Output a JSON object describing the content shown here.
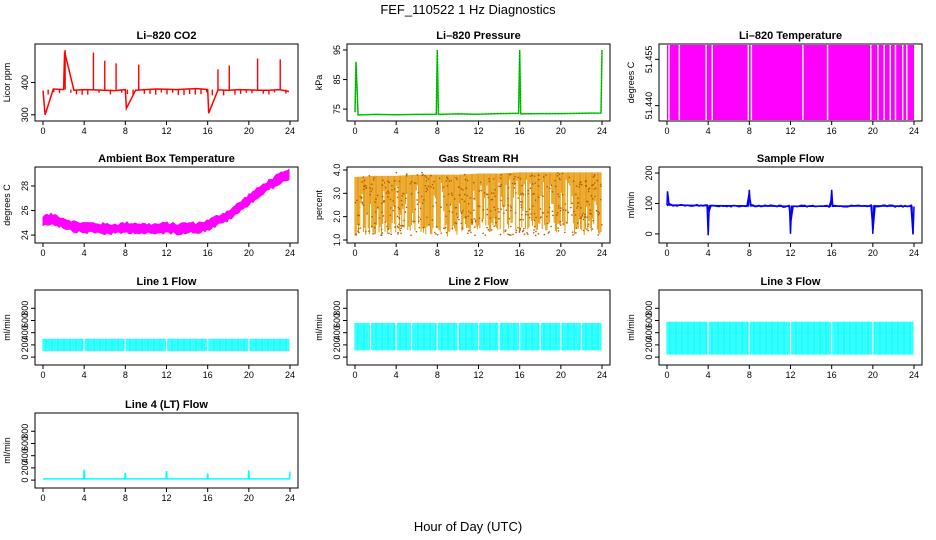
{
  "figure": {
    "title": "FEF_110522  1 Hz Diagnostics",
    "xlabel": "Hour of Day (UTC)"
  },
  "chart_data": [
    {
      "type": "line",
      "title": "Li–820 CO2",
      "ylabel": "Licor ppm",
      "xlim": [
        0,
        24
      ],
      "ylim": [
        290,
        510
      ],
      "xticks": [
        "0",
        "4",
        "8",
        "12",
        "16",
        "20",
        "24"
      ],
      "yticks": [
        "300",
        "400"
      ],
      "color": "#ff0000",
      "series": [
        {
          "x": [
            0,
            0.2,
            1,
            2,
            2.1,
            3,
            4,
            5,
            6,
            7,
            8,
            8.1,
            9,
            10,
            11,
            12,
            13,
            14,
            15,
            16,
            16.1,
            17,
            18,
            19,
            20,
            21,
            22,
            23,
            23.9
          ],
          "values": [
            375,
            300,
            380,
            378,
            495,
            376,
            378,
            377,
            376,
            375,
            378,
            320,
            376,
            378,
            380,
            379,
            378,
            380,
            381,
            378,
            305,
            377,
            376,
            378,
            377,
            376,
            376,
            378,
            372
          ]
        }
      ]
    },
    {
      "type": "line",
      "title": "Li–820 Pressure",
      "ylabel": "kPa",
      "xlim": [
        0,
        24
      ],
      "ylim": [
        72,
        96
      ],
      "xticks": [
        "0",
        "4",
        "8",
        "12",
        "16",
        "20",
        "24"
      ],
      "yticks": [
        "75",
        "85",
        "95"
      ],
      "color": "#00cc00",
      "series": [
        {
          "x": [
            0,
            0.1,
            0.3,
            2,
            4,
            6,
            7.9,
            8,
            8.1,
            10,
            12,
            14,
            15.9,
            16,
            16.1,
            18,
            20,
            22,
            23.9,
            24
          ],
          "values": [
            74,
            91,
            73,
            73.2,
            73.1,
            73.2,
            73.3,
            95,
            73.2,
            73.4,
            73.3,
            73.5,
            73.6,
            95,
            73.4,
            73.5,
            73.5,
            73.6,
            73.7,
            95
          ]
        }
      ]
    },
    {
      "type": "area",
      "title": "Li–820 Temperature",
      "ylabel": "degrees C",
      "xlim": [
        0,
        24
      ],
      "ylim": [
        51.436,
        51.459
      ],
      "xticks": [
        "0",
        "4",
        "8",
        "12",
        "16",
        "20",
        "24"
      ],
      "yticks": [
        "51.440",
        "51.455"
      ],
      "color": "#ff00ff",
      "gap_hours": [
        0.2,
        1.2,
        3.8,
        4.4,
        7.9,
        8.2,
        13.2,
        15.6,
        19.8,
        20.5,
        21.1,
        21.7,
        22.2,
        22.9,
        23.3
      ]
    },
    {
      "type": "line",
      "title": "Ambient Box Temperature",
      "ylabel": "degrees C",
      "xlim": [
        0,
        24
      ],
      "ylim": [
        23.6,
        29.3
      ],
      "xticks": [
        "0",
        "4",
        "8",
        "12",
        "16",
        "20",
        "24"
      ],
      "yticks": [
        "24",
        "26",
        "28"
      ],
      "color": "#ff00ff",
      "series": [
        {
          "x": [
            0,
            1,
            2,
            3,
            4,
            5,
            6,
            7,
            8,
            9,
            10,
            11,
            12,
            13,
            14,
            15,
            16,
            17,
            18,
            19,
            20,
            21,
            22,
            23,
            24
          ],
          "values": [
            25.2,
            25.3,
            25.0,
            24.7,
            24.6,
            24.6,
            24.5,
            24.5,
            24.6,
            24.6,
            24.5,
            24.5,
            24.6,
            24.5,
            24.6,
            24.6,
            24.8,
            25.2,
            25.6,
            26.2,
            26.9,
            27.5,
            28.1,
            28.6,
            28.9
          ]
        }
      ]
    },
    {
      "type": "area",
      "title": "Gas Stream RH",
      "ylabel": "percent",
      "xlim": [
        0,
        24
      ],
      "ylim": [
        1.0,
        4.0
      ],
      "xticks": [
        "0",
        "4",
        "8",
        "12",
        "16",
        "20",
        "24"
      ],
      "yticks": [
        "1.0",
        "2.0",
        "3.0",
        "4.0"
      ],
      "color": "#e69500",
      "series": [
        {
          "x": [
            0,
            2,
            4,
            6,
            8,
            10,
            12,
            14,
            16,
            18,
            20,
            22,
            24
          ],
          "values": [
            3.7,
            3.75,
            3.75,
            3.8,
            3.8,
            3.8,
            3.85,
            3.85,
            3.9,
            3.9,
            3.9,
            3.9,
            3.9
          ]
        }
      ],
      "low_values": [
        1.1,
        1.2,
        1.3,
        1.2,
        1.1,
        1.2,
        1.2,
        1.3,
        1.2,
        1.2,
        1.3,
        1.2,
        1.2
      ]
    },
    {
      "type": "line",
      "title": "Sample Flow",
      "ylabel": "ml/min",
      "xlim": [
        0,
        24
      ],
      "ylim": [
        -20,
        210
      ],
      "xticks": [
        "0",
        "4",
        "8",
        "12",
        "16",
        "20",
        "24"
      ],
      "yticks": [
        "0",
        "100",
        "200"
      ],
      "color": "#0000ff",
      "series": [
        {
          "x": [
            0,
            0.05,
            0.2,
            3.9,
            4.0,
            4.1,
            7.9,
            8.0,
            8.1,
            11.9,
            12.0,
            12.1,
            15.9,
            16.0,
            16.1,
            19.9,
            20.0,
            20.1,
            23.8,
            23.9,
            24
          ],
          "values": [
            95,
            140,
            95,
            93,
            -5,
            93,
            92,
            145,
            92,
            91,
            0,
            91,
            91,
            145,
            91,
            92,
            0,
            92,
            91,
            -2,
            90
          ]
        }
      ]
    },
    {
      "type": "area",
      "title": "Line 1 Flow",
      "ylabel": "ml/min",
      "xlim": [
        0,
        24
      ],
      "ylim": [
        -80,
        1050
      ],
      "xticks": [
        "0",
        "4",
        "8",
        "12",
        "16",
        "20",
        "24"
      ],
      "yticks": [
        "0",
        "200",
        "400",
        "600",
        "800"
      ],
      "color": "#00ffff",
      "series": [
        {
          "name": "",
          "x": [
            0,
            24
          ],
          "values": [
            300,
            300
          ]
        }
      ],
      "low_values": [
        100,
        100
      ],
      "gap_hours": [
        4,
        8,
        12,
        16,
        20,
        24
      ]
    },
    {
      "type": "area",
      "title": "Line 2 Flow",
      "ylabel": "ml/min",
      "xlim": [
        0,
        24
      ],
      "ylim": [
        -80,
        1050
      ],
      "xticks": [
        "0",
        "4",
        "8",
        "12",
        "16",
        "20",
        "24"
      ],
      "yticks": [
        "0",
        "200",
        "400",
        "600",
        "800"
      ],
      "color": "#00ffff",
      "series": [
        {
          "name": "",
          "x": [
            0,
            24
          ],
          "values": [
            560,
            560
          ]
        }
      ],
      "low_values": [
        110,
        110
      ],
      "gap_hours": [
        1.5,
        4,
        5.5,
        8,
        10,
        12,
        14,
        16,
        18,
        20,
        22,
        24
      ]
    },
    {
      "type": "area",
      "title": "Line 3 Flow",
      "ylabel": "ml/min",
      "xlim": [
        0,
        24
      ],
      "ylim": [
        -80,
        1050
      ],
      "xticks": [
        "0",
        "4",
        "8",
        "12",
        "16",
        "20",
        "24"
      ],
      "yticks": [
        "0",
        "200",
        "400",
        "600",
        "800"
      ],
      "color": "#00ffff",
      "series": [
        {
          "name": "",
          "x": [
            0,
            24
          ],
          "values": [
            580,
            580
          ]
        }
      ],
      "low_values": [
        40,
        40
      ],
      "gap_hours": [
        4,
        8,
        12,
        16,
        20,
        24
      ]
    },
    {
      "type": "line",
      "title": "Line 4 (LT) Flow",
      "ylabel": "ml/min",
      "xlim": [
        0,
        24
      ],
      "ylim": [
        -80,
        1050
      ],
      "xticks": [
        "0",
        "4",
        "8",
        "12",
        "16",
        "20",
        "24"
      ],
      "yticks": [
        "0",
        "200",
        "400",
        "600",
        "800"
      ],
      "color": "#00ffff",
      "series": [
        {
          "x": [
            0,
            3.95,
            4.0,
            4.05,
            7.95,
            8.0,
            8.05,
            11.95,
            12.0,
            12.05,
            15.95,
            16.0,
            16.05,
            19.95,
            20.0,
            20.05,
            23.95,
            24.0
          ],
          "values": [
            20,
            20,
            170,
            20,
            20,
            120,
            20,
            20,
            150,
            20,
            20,
            110,
            20,
            20,
            160,
            20,
            20,
            140
          ]
        }
      ]
    }
  ]
}
